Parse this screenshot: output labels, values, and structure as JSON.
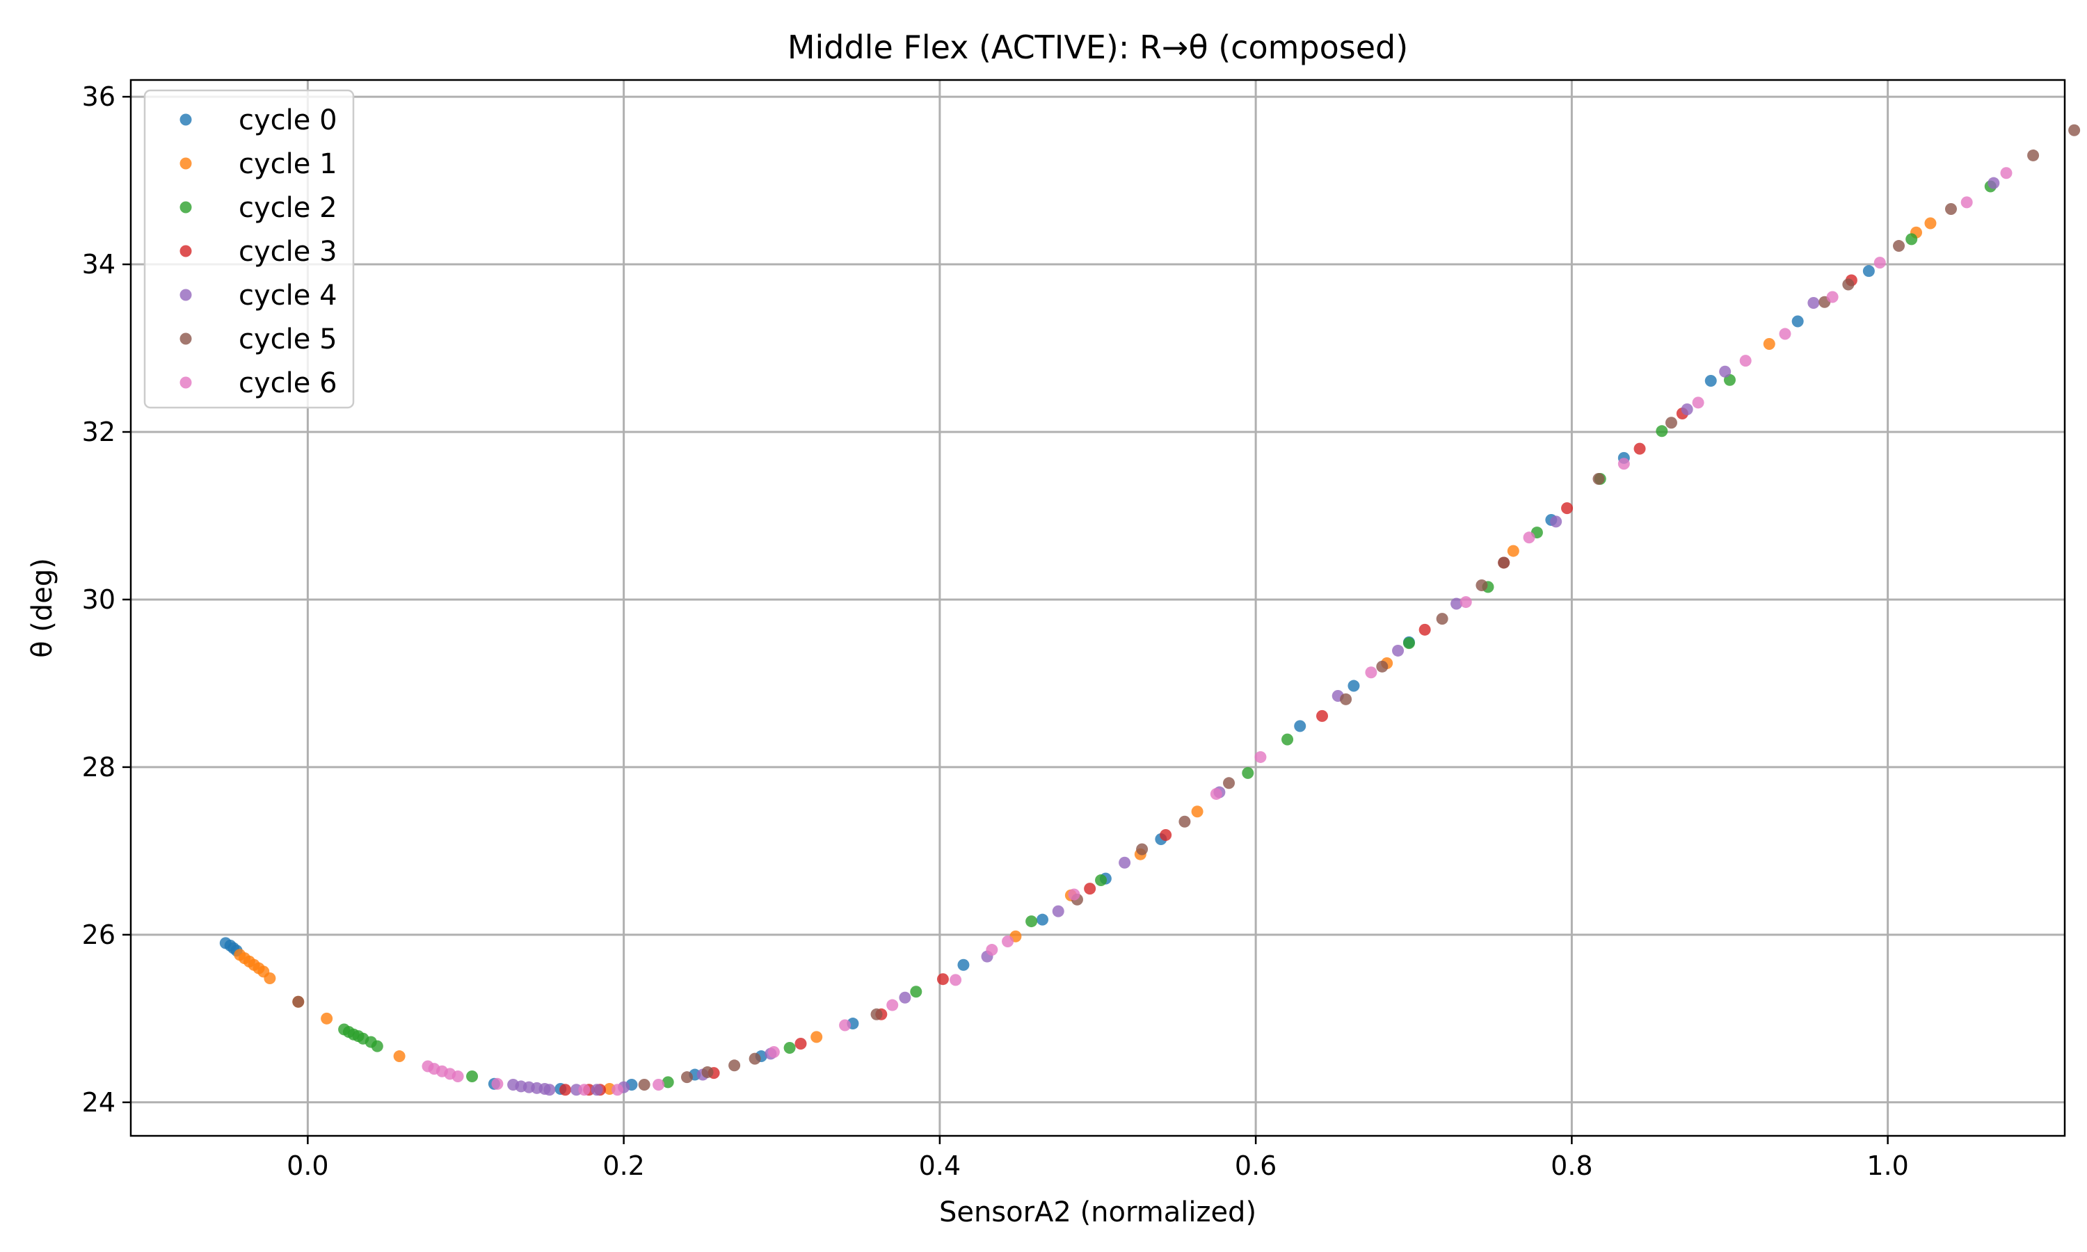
{
  "chart_data": {
    "type": "scatter",
    "title": "Middle Flex (ACTIVE): R→θ (composed)",
    "xlabel": "SensorA2 (normalized)",
    "ylabel": "θ (deg)",
    "xlim": [
      -0.112,
      1.112
    ],
    "ylim": [
      23.6,
      36.2
    ],
    "xticks": [
      0.0,
      0.2,
      0.4,
      0.6,
      0.8,
      1.0
    ],
    "xtick_labels": [
      "0.0",
      "0.2",
      "0.4",
      "0.6",
      "0.8",
      "1.0"
    ],
    "yticks": [
      24,
      26,
      28,
      30,
      32,
      34,
      36
    ],
    "ytick_labels": [
      "24",
      "26",
      "28",
      "30",
      "32",
      "34",
      "36"
    ],
    "grid": true,
    "legend_position": "top-left",
    "series": [
      {
        "name": "cycle 0",
        "color": "#1f77b4",
        "x": [
          -0.052,
          -0.049,
          -0.047,
          -0.045,
          0.118,
          0.16,
          0.205,
          0.245,
          0.287,
          0.345,
          0.415,
          0.465,
          0.505,
          0.54,
          0.628,
          0.662,
          0.697,
          0.787,
          0.833,
          0.888,
          0.943,
          0.988
        ],
        "y": [
          25.9,
          25.87,
          25.84,
          25.81,
          24.22,
          24.16,
          24.21,
          24.33,
          24.55,
          24.94,
          25.64,
          26.18,
          26.67,
          27.14,
          28.49,
          28.97,
          29.49,
          30.95,
          31.69,
          32.61,
          33.32,
          33.92
        ]
      },
      {
        "name": "cycle 1",
        "color": "#ff7f0e",
        "x": [
          -0.043,
          -0.04,
          -0.037,
          -0.034,
          -0.031,
          -0.028,
          -0.024,
          -0.006,
          0.012,
          0.058,
          0.191,
          0.322,
          0.448,
          0.483,
          0.527,
          0.563,
          0.683,
          0.763,
          0.925,
          1.018,
          1.027
        ],
        "y": [
          25.76,
          25.72,
          25.68,
          25.64,
          25.6,
          25.56,
          25.48,
          25.2,
          25.0,
          24.55,
          24.16,
          24.78,
          25.98,
          26.47,
          26.96,
          27.47,
          29.24,
          30.58,
          33.05,
          34.38,
          34.49
        ]
      },
      {
        "name": "cycle 2",
        "color": "#2ca02c",
        "x": [
          0.023,
          0.026,
          0.029,
          0.032,
          0.035,
          0.04,
          0.044,
          0.104,
          0.228,
          0.305,
          0.385,
          0.458,
          0.502,
          0.595,
          0.62,
          0.697,
          0.747,
          0.778,
          0.818,
          0.857,
          0.9,
          1.015,
          1.065
        ],
        "y": [
          24.87,
          24.84,
          24.81,
          24.79,
          24.76,
          24.72,
          24.67,
          24.31,
          24.24,
          24.65,
          25.32,
          26.16,
          26.65,
          27.93,
          28.33,
          29.48,
          30.15,
          30.8,
          31.44,
          32.01,
          32.62,
          34.3,
          34.93
        ]
      },
      {
        "name": "cycle 3",
        "color": "#d62728",
        "x": [
          0.163,
          0.178,
          0.185,
          0.257,
          0.312,
          0.363,
          0.402,
          0.495,
          0.543,
          0.642,
          0.707,
          0.757,
          0.797,
          0.843,
          0.87,
          0.977
        ],
        "y": [
          24.15,
          24.15,
          24.15,
          24.35,
          24.7,
          25.05,
          25.47,
          26.55,
          27.19,
          28.61,
          29.64,
          30.44,
          31.09,
          31.8,
          32.22,
          33.81
        ]
      },
      {
        "name": "cycle 4",
        "color": "#9467bd",
        "x": [
          0.13,
          0.135,
          0.14,
          0.145,
          0.15,
          0.153,
          0.17,
          0.183,
          0.2,
          0.25,
          0.293,
          0.378,
          0.43,
          0.475,
          0.517,
          0.577,
          0.652,
          0.69,
          0.727,
          0.79,
          0.873,
          0.897,
          0.953,
          1.067
        ],
        "y": [
          24.21,
          24.19,
          24.18,
          24.17,
          24.16,
          24.15,
          24.15,
          24.15,
          24.18,
          24.33,
          24.58,
          25.25,
          25.74,
          26.28,
          26.86,
          27.7,
          28.85,
          29.39,
          29.95,
          30.93,
          32.27,
          32.72,
          33.54,
          34.97
        ]
      },
      {
        "name": "cycle 5",
        "color": "#8c564b",
        "x": [
          -0.006,
          0.213,
          0.24,
          0.253,
          0.27,
          0.283,
          0.36,
          0.487,
          0.528,
          0.555,
          0.583,
          0.657,
          0.68,
          0.718,
          0.743,
          0.757,
          0.817,
          0.863,
          0.96,
          0.975,
          1.007,
          1.04,
          1.092,
          1.118
        ],
        "y": [
          25.2,
          24.21,
          24.3,
          24.36,
          24.44,
          24.52,
          25.05,
          26.42,
          27.02,
          27.35,
          27.81,
          28.81,
          29.2,
          29.77,
          30.17,
          30.44,
          31.44,
          32.11,
          33.55,
          33.76,
          34.22,
          34.66,
          35.3,
          35.6
        ]
      },
      {
        "name": "cycle 6",
        "color": "#e377c2",
        "x": [
          0.076,
          0.08,
          0.085,
          0.09,
          0.095,
          0.12,
          0.175,
          0.196,
          0.222,
          0.295,
          0.34,
          0.37,
          0.41,
          0.433,
          0.443,
          0.485,
          0.575,
          0.603,
          0.673,
          0.733,
          0.773,
          0.833,
          0.88,
          0.91,
          0.935,
          0.965,
          0.995,
          1.05,
          1.075
        ],
        "y": [
          24.43,
          24.4,
          24.37,
          24.34,
          24.31,
          24.22,
          24.15,
          24.15,
          24.21,
          24.6,
          24.92,
          25.16,
          25.46,
          25.82,
          25.92,
          26.48,
          27.68,
          28.12,
          29.13,
          29.97,
          30.74,
          31.62,
          32.35,
          32.85,
          33.17,
          33.61,
          34.02,
          34.74,
          35.09
        ]
      }
    ]
  }
}
